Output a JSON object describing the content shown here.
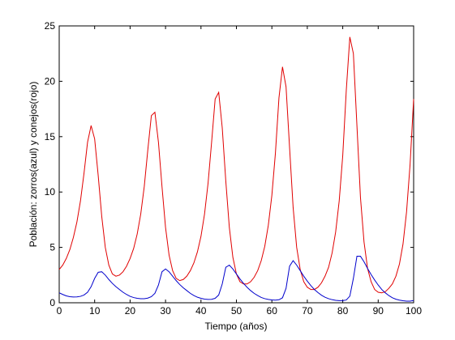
{
  "chart_data": {
    "type": "line",
    "xlabel": "Tiempo (años)",
    "ylabel": "Población: zorros(azul) y conejos(rojo)",
    "x": [
      0,
      1,
      2,
      3,
      4,
      5,
      6,
      7,
      8,
      9,
      10,
      11,
      12,
      13,
      14,
      15,
      16,
      17,
      18,
      19,
      20,
      21,
      22,
      23,
      24,
      25,
      26,
      27,
      28,
      29,
      30,
      31,
      32,
      33,
      34,
      35,
      36,
      37,
      38,
      39,
      40,
      41,
      42,
      43,
      44,
      45,
      46,
      47,
      48,
      49,
      50,
      51,
      52,
      53,
      54,
      55,
      56,
      57,
      58,
      59,
      60,
      61,
      62,
      63,
      64,
      65,
      66,
      67,
      68,
      69,
      70,
      71,
      72,
      73,
      74,
      75,
      76,
      77,
      78,
      79,
      80,
      81,
      82,
      83,
      84,
      85,
      86,
      87,
      88,
      89,
      90,
      91,
      92,
      93,
      94,
      95,
      96,
      97,
      98,
      99,
      100
    ],
    "series": [
      {
        "color": "#e00000",
        "values": [
          3.0,
          3.4,
          4.0,
          4.8,
          5.9,
          7.3,
          9.2,
          11.7,
          14.5,
          16.0,
          14.8,
          11.5,
          7.8,
          5.0,
          3.4,
          2.6,
          2.4,
          2.5,
          2.8,
          3.3,
          4.0,
          4.9,
          6.2,
          8.0,
          10.5,
          13.8,
          16.9,
          17.2,
          14.5,
          10.5,
          6.8,
          4.3,
          2.9,
          2.2,
          2.0,
          2.1,
          2.4,
          2.9,
          3.6,
          4.6,
          6.0,
          8.0,
          10.8,
          14.5,
          18.4,
          19.0,
          15.8,
          11.0,
          6.8,
          4.1,
          2.6,
          1.9,
          1.7,
          1.7,
          1.9,
          2.3,
          2.9,
          3.8,
          5.1,
          7.0,
          9.7,
          13.5,
          18.5,
          21.3,
          19.5,
          14.0,
          8.6,
          5.0,
          3.0,
          1.9,
          1.4,
          1.2,
          1.2,
          1.4,
          1.8,
          2.4,
          3.2,
          4.5,
          6.4,
          9.2,
          13.3,
          19.2,
          24.0,
          22.5,
          16.0,
          9.5,
          5.5,
          3.1,
          1.9,
          1.2,
          0.95,
          0.9,
          1.0,
          1.3,
          1.7,
          2.4,
          3.5,
          5.3,
          8.2,
          12.5,
          18.4
        ]
      },
      {
        "color": "#0000cc",
        "values": [
          0.9,
          0.75,
          0.62,
          0.55,
          0.52,
          0.53,
          0.58,
          0.7,
          0.95,
          1.45,
          2.2,
          2.75,
          2.8,
          2.5,
          2.1,
          1.75,
          1.45,
          1.2,
          0.95,
          0.75,
          0.58,
          0.47,
          0.4,
          0.37,
          0.37,
          0.42,
          0.55,
          0.85,
          1.6,
          2.8,
          3.05,
          2.8,
          2.4,
          2.0,
          1.65,
          1.35,
          1.1,
          0.85,
          0.65,
          0.5,
          0.4,
          0.33,
          0.3,
          0.31,
          0.4,
          0.7,
          1.7,
          3.2,
          3.4,
          3.05,
          2.6,
          2.15,
          1.75,
          1.4,
          1.1,
          0.85,
          0.65,
          0.48,
          0.37,
          0.3,
          0.26,
          0.24,
          0.27,
          0.45,
          1.3,
          3.3,
          3.8,
          3.4,
          2.9,
          2.4,
          1.95,
          1.55,
          1.2,
          0.92,
          0.68,
          0.5,
          0.37,
          0.28,
          0.22,
          0.19,
          0.19,
          0.25,
          0.6,
          2.2,
          4.2,
          4.2,
          3.7,
          3.1,
          2.55,
          2.05,
          1.6,
          1.2,
          0.9,
          0.65,
          0.45,
          0.32,
          0.24,
          0.18,
          0.15,
          0.15,
          0.2
        ]
      }
    ],
    "xlim": [
      0,
      100
    ],
    "xticks": [
      0,
      10,
      20,
      30,
      40,
      50,
      60,
      70,
      80,
      90,
      100
    ],
    "ylim": [
      0,
      25
    ],
    "yticks": [
      0,
      5,
      10,
      15,
      20,
      25
    ]
  }
}
